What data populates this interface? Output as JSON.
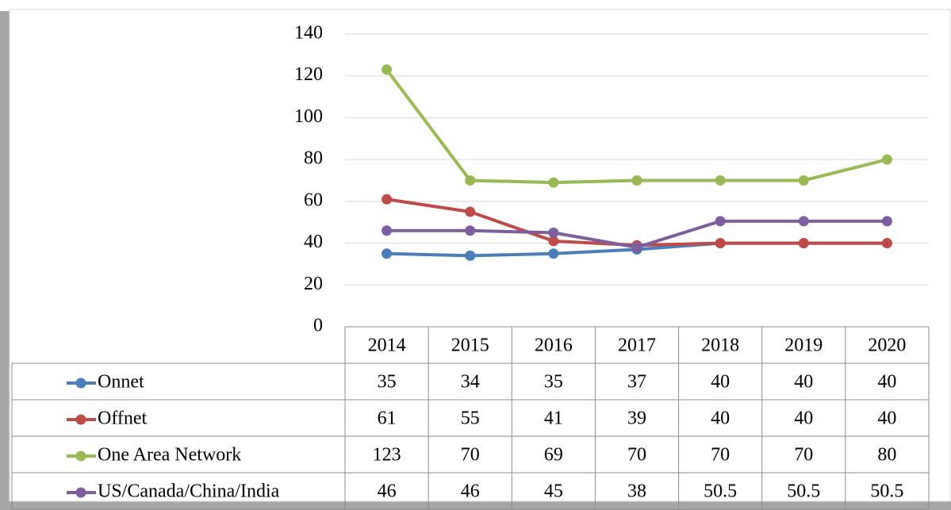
{
  "chart_data": {
    "type": "line",
    "categories": [
      "2014",
      "2015",
      "2016",
      "2017",
      "2018",
      "2019",
      "2020"
    ],
    "series": [
      {
        "name": "Onnet",
        "color": "#4a7ebb",
        "values": [
          35,
          34,
          35,
          37,
          40,
          40,
          40
        ]
      },
      {
        "name": "Offnet",
        "color": "#be4b48",
        "values": [
          61,
          55,
          41,
          39,
          40,
          40,
          40
        ]
      },
      {
        "name": "One Area Network",
        "color": "#98b954",
        "values": [
          123,
          70,
          69,
          70,
          70,
          70,
          80
        ]
      },
      {
        "name": "US/Canada/China/India",
        "color": "#7d5fa0",
        "values": [
          46,
          46,
          45,
          38,
          50.5,
          50.5,
          50.5
        ]
      }
    ],
    "ylim": [
      0,
      140
    ],
    "yticks": [
      0,
      20,
      40,
      60,
      80,
      100,
      120,
      140
    ],
    "grid": true,
    "data_table": true
  }
}
